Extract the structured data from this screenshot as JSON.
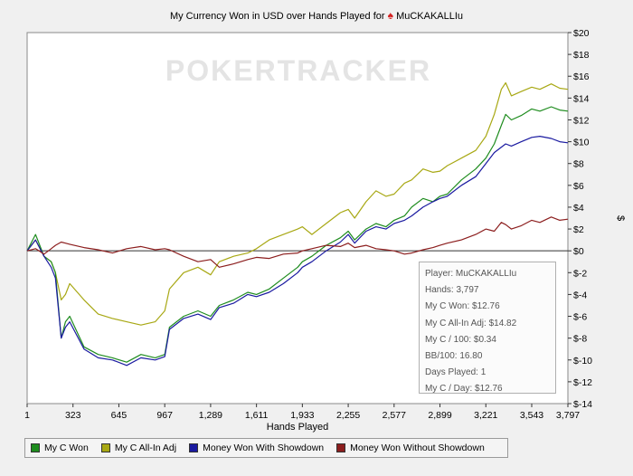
{
  "chart_data": {
    "type": "line",
    "title": "My Currency Won in USD over Hands Played for",
    "player_icon": "spade-icon",
    "player": "MuCKAKALLIu",
    "watermark": "POKERTRACKER",
    "xlabel": "Hands Played",
    "ylabel": "$",
    "xlim": [
      1,
      3797
    ],
    "ylim": [
      -14,
      20
    ],
    "x_ticks": [
      "1",
      "323",
      "645",
      "967",
      "1,289",
      "1,611",
      "1,933",
      "2,255",
      "2,577",
      "2,899",
      "3,221",
      "3,543",
      "3,797"
    ],
    "x_tick_values": [
      1,
      323,
      645,
      967,
      1289,
      1611,
      1933,
      2255,
      2577,
      2899,
      3221,
      3543,
      3797
    ],
    "y_ticks": [
      "$20",
      "$18",
      "$16",
      "$14",
      "$12",
      "$10",
      "$8",
      "$6",
      "$4",
      "$2",
      "$0",
      "$-2",
      "$-4",
      "$-6",
      "$-8",
      "$-10",
      "$-12",
      "$-14"
    ],
    "y_tick_values": [
      20,
      18,
      16,
      14,
      12,
      10,
      8,
      6,
      4,
      2,
      0,
      -2,
      -4,
      -6,
      -8,
      -10,
      -12,
      -14
    ],
    "series": [
      {
        "name": "My C All-In Adj",
        "color": "#a8a814",
        "x": [
          1,
          60,
          120,
          170,
          200,
          240,
          270,
          300,
          400,
          500,
          600,
          700,
          800,
          900,
          967,
          1000,
          1100,
          1200,
          1289,
          1350,
          1450,
          1550,
          1611,
          1700,
          1800,
          1900,
          1933,
          2000,
          2100,
          2200,
          2255,
          2300,
          2380,
          2450,
          2520,
          2577,
          2650,
          2700,
          2780,
          2850,
          2899,
          2950,
          3050,
          3150,
          3221,
          3280,
          3330,
          3360,
          3400,
          3470,
          3543,
          3600,
          3680,
          3740,
          3797
        ],
        "values": [
          0,
          1,
          -0.5,
          -1,
          -2,
          -4.5,
          -4,
          -3,
          -4.5,
          -5.8,
          -6.2,
          -6.5,
          -6.8,
          -6.5,
          -5.5,
          -3.5,
          -2,
          -1.5,
          -2.2,
          -1,
          -0.5,
          -0.2,
          0.2,
          1,
          1.5,
          2,
          2.2,
          1.5,
          2.5,
          3.5,
          3.8,
          3,
          4.5,
          5.5,
          5,
          5.2,
          6.2,
          6.5,
          7.5,
          7.2,
          7.3,
          7.8,
          8.5,
          9.2,
          10.5,
          12.5,
          14.8,
          15.4,
          14.2,
          14.6,
          15,
          14.8,
          15.3,
          14.9,
          14.8
        ]
      },
      {
        "name": "My C Won",
        "color": "#1e8c1e",
        "x": [
          1,
          60,
          120,
          170,
          200,
          240,
          270,
          300,
          400,
          500,
          600,
          700,
          800,
          900,
          967,
          1000,
          1100,
          1200,
          1289,
          1350,
          1450,
          1550,
          1611,
          1700,
          1800,
          1900,
          1933,
          2000,
          2100,
          2200,
          2255,
          2300,
          2380,
          2450,
          2520,
          2577,
          2650,
          2700,
          2780,
          2850,
          2899,
          2950,
          3050,
          3150,
          3221,
          3280,
          3330,
          3360,
          3400,
          3470,
          3543,
          3600,
          3680,
          3740,
          3797
        ],
        "values": [
          0,
          1.5,
          -0.5,
          -1,
          -2,
          -8,
          -6.5,
          -6,
          -8.8,
          -9.5,
          -9.8,
          -10.2,
          -9.5,
          -9.8,
          -9.5,
          -7,
          -6,
          -5.5,
          -6,
          -5,
          -4.5,
          -3.8,
          -4,
          -3.5,
          -2.5,
          -1.5,
          -1,
          -0.5,
          0.5,
          1.2,
          1.8,
          1,
          2,
          2.5,
          2.2,
          2.8,
          3.2,
          4,
          4.8,
          4.5,
          5,
          5.2,
          6.5,
          7.5,
          8.5,
          9.8,
          11.5,
          12.5,
          12,
          12.4,
          13,
          12.8,
          13.2,
          12.9,
          12.8
        ]
      },
      {
        "name": "Money Won With Showdown",
        "color": "#1a1aa0",
        "x": [
          1,
          60,
          120,
          170,
          200,
          240,
          270,
          300,
          400,
          500,
          600,
          700,
          800,
          900,
          967,
          1000,
          1100,
          1200,
          1289,
          1350,
          1450,
          1550,
          1611,
          1700,
          1800,
          1900,
          1933,
          2000,
          2100,
          2200,
          2255,
          2300,
          2380,
          2450,
          2520,
          2577,
          2650,
          2700,
          2780,
          2850,
          2899,
          2950,
          3050,
          3150,
          3221,
          3280,
          3330,
          3360,
          3400,
          3470,
          3543,
          3600,
          3680,
          3740,
          3797
        ],
        "values": [
          0,
          1,
          -0.5,
          -1.5,
          -2.5,
          -8,
          -7,
          -6.5,
          -9,
          -9.8,
          -10,
          -10.5,
          -9.8,
          -10,
          -9.7,
          -7.2,
          -6.2,
          -5.8,
          -6.3,
          -5.2,
          -4.8,
          -4,
          -4.2,
          -3.8,
          -3,
          -2,
          -1.5,
          -1,
          0,
          0.8,
          1.5,
          0.7,
          1.8,
          2.2,
          2,
          2.5,
          2.8,
          3.2,
          4,
          4.5,
          4.8,
          5,
          6,
          6.8,
          8,
          9,
          9.5,
          9.8,
          9.6,
          10,
          10.4,
          10.5,
          10.3,
          10,
          9.9
        ]
      },
      {
        "name": "Money Won Without Showdown",
        "color": "#8c1e1e",
        "x": [
          1,
          60,
          120,
          170,
          200,
          240,
          270,
          300,
          400,
          500,
          600,
          700,
          800,
          900,
          967,
          1000,
          1100,
          1200,
          1289,
          1350,
          1450,
          1550,
          1611,
          1700,
          1800,
          1900,
          1933,
          2000,
          2100,
          2200,
          2255,
          2300,
          2380,
          2450,
          2520,
          2577,
          2650,
          2700,
          2780,
          2850,
          2899,
          2950,
          3050,
          3150,
          3221,
          3280,
          3330,
          3360,
          3400,
          3470,
          3543,
          3600,
          3680,
          3740,
          3797
        ],
        "values": [
          0,
          0.2,
          -0.3,
          0.2,
          0.5,
          0.8,
          0.7,
          0.6,
          0.3,
          0.1,
          -0.2,
          0.2,
          0.4,
          0.1,
          0.2,
          0.1,
          -0.5,
          -1,
          -0.8,
          -1.5,
          -1.2,
          -0.8,
          -0.6,
          -0.7,
          -0.3,
          -0.2,
          0,
          0.2,
          0.5,
          0.4,
          0.7,
          0.3,
          0.5,
          0.2,
          0.1,
          0,
          -0.3,
          -0.2,
          0.1,
          0.3,
          0.5,
          0.7,
          1,
          1.5,
          2,
          1.8,
          2.6,
          2.4,
          2,
          2.3,
          2.8,
          2.6,
          3.1,
          2.8,
          2.9
        ]
      }
    ]
  },
  "legend": [
    {
      "label": "My C Won",
      "color": "#1e8c1e"
    },
    {
      "label": "My C All-In Adj",
      "color": "#a8a814"
    },
    {
      "label": "Money Won With Showdown",
      "color": "#1a1aa0"
    },
    {
      "label": "Money Won Without Showdown",
      "color": "#8c1e1e"
    }
  ],
  "tooltip": {
    "player": "Player: MuCKAKALLIu",
    "hands": "Hands: 3,797",
    "won": "My C Won: $12.76",
    "allin": "My C All-In Adj: $14.82",
    "per100": "My C / 100: $0.34",
    "bb100": "BB/100: 16.80",
    "days": "Days Played: 1",
    "perday": "My C / Day: $12.76"
  }
}
